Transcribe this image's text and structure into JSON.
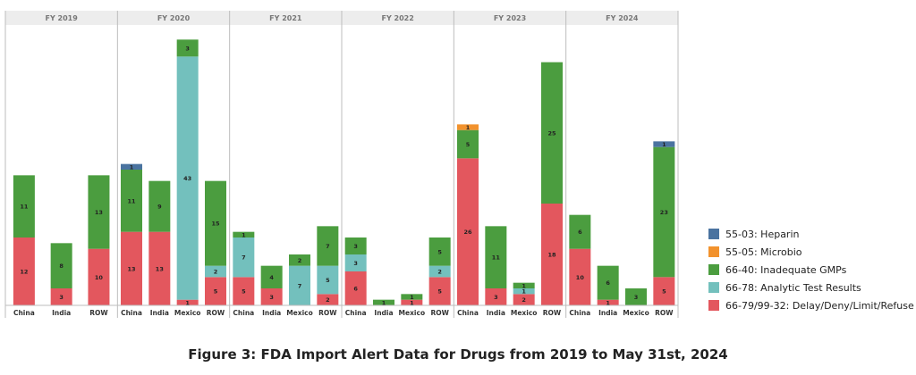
{
  "caption": "Figure 3: FDA Import Alert Data for Drugs from 2019 to May 31st, 2024",
  "chart_data": {
    "type": "bar",
    "stacked": true,
    "ylim": [
      0,
      48
    ],
    "grid": false,
    "legend_position": "right",
    "legend": [
      {
        "key": "55-03",
        "label": "55-03: Heparin",
        "color": "#4a73a0"
      },
      {
        "key": "55-05",
        "label": "55-05: Microbio",
        "color": "#f2922d"
      },
      {
        "key": "66-40",
        "label": "66-40: Inadequate GMPs",
        "color": "#4b9d3f"
      },
      {
        "key": "66-78",
        "label": "66-78: Analytic Test Results",
        "color": "#73c0bd"
      },
      {
        "key": "66-79",
        "label": "66-79/99-32: Delay/Deny/Limit/Refuse",
        "color": "#e3575e"
      }
    ],
    "panels": [
      {
        "title": "FY 2019",
        "bars": [
          {
            "category": "China",
            "segments": {
              "66-79": 12,
              "66-40": 11
            }
          },
          {
            "category": "India",
            "segments": {
              "66-79": 3,
              "66-40": 8
            }
          },
          {
            "category": "ROW",
            "segments": {
              "66-79": 10,
              "66-40": 13
            }
          }
        ]
      },
      {
        "title": "FY 2020",
        "bars": [
          {
            "category": "China",
            "segments": {
              "66-79": 13,
              "66-40": 11,
              "55-03": 1
            }
          },
          {
            "category": "India",
            "segments": {
              "66-79": 13,
              "66-40": 9
            }
          },
          {
            "category": "Mexico",
            "segments": {
              "66-79": 1,
              "66-78": 43,
              "66-40": 3
            }
          },
          {
            "category": "ROW",
            "segments": {
              "66-79": 5,
              "66-78": 2,
              "66-40": 15
            }
          }
        ]
      },
      {
        "title": "FY 2021",
        "bars": [
          {
            "category": "China",
            "segments": {
              "66-79": 5,
              "66-78": 7,
              "66-40": 1
            }
          },
          {
            "category": "India",
            "segments": {
              "66-79": 3,
              "66-40": 4
            }
          },
          {
            "category": "Mexico",
            "segments": {
              "66-78": 7,
              "66-40": 2
            }
          },
          {
            "category": "ROW",
            "segments": {
              "66-79": 2,
              "66-78": 5,
              "66-40": 7
            }
          }
        ]
      },
      {
        "title": "FY 2022",
        "bars": [
          {
            "category": "China",
            "segments": {
              "66-79": 6,
              "66-78": 3,
              "66-40": 3
            }
          },
          {
            "category": "India",
            "segments": {
              "66-40": 1
            }
          },
          {
            "category": "Mexico",
            "segments": {
              "66-79": 1,
              "66-40": 1
            }
          },
          {
            "category": "ROW",
            "segments": {
              "66-79": 5,
              "66-78": 2,
              "66-40": 5
            }
          }
        ]
      },
      {
        "title": "FY 2023",
        "bars": [
          {
            "category": "China",
            "segments": {
              "66-79": 26,
              "66-40": 5,
              "55-05": 1
            }
          },
          {
            "category": "India",
            "segments": {
              "66-79": 3,
              "66-40": 11
            }
          },
          {
            "category": "Mexico",
            "segments": {
              "66-79": 2,
              "66-78": 1,
              "66-40": 1
            }
          },
          {
            "category": "ROW",
            "segments": {
              "66-79": 18,
              "66-40": 25
            }
          }
        ]
      },
      {
        "title": "FY 2024",
        "bars": [
          {
            "category": "China",
            "segments": {
              "66-79": 10,
              "66-40": 6
            }
          },
          {
            "category": "India",
            "segments": {
              "66-79": 1,
              "66-40": 6
            }
          },
          {
            "category": "Mexico",
            "segments": {
              "66-40": 3
            }
          },
          {
            "category": "ROW",
            "segments": {
              "66-79": 5,
              "66-40": 23,
              "55-03": 1
            }
          }
        ]
      }
    ]
  }
}
